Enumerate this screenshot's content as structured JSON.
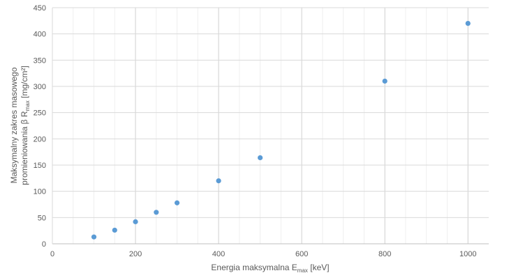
{
  "chart_data": {
    "type": "scatter",
    "title": "",
    "xlabel": {
      "main": "Energia maksymalna E",
      "sub": "max",
      "unit": " [keV]"
    },
    "ylabel": {
      "line1": "Maksymalny zakres masowego",
      "line2_main": "promieniowania β R",
      "line2_sub": "max",
      "line2_unit": "  [mg/cm²]"
    },
    "xlim": [
      0,
      1050
    ],
    "ylim": [
      0,
      450
    ],
    "x_ticks": [
      0,
      200,
      400,
      600,
      800,
      1000
    ],
    "y_ticks": [
      0,
      50,
      100,
      150,
      200,
      250,
      300,
      350,
      400,
      450
    ],
    "grid": true,
    "legend": "none",
    "marker_color": "#5B9BD5",
    "series": [
      {
        "x": [
          100,
          150,
          200,
          250,
          300,
          400,
          500,
          800,
          1000
        ],
        "y": [
          13,
          26,
          42,
          60,
          78,
          120,
          164,
          310,
          420
        ]
      }
    ]
  }
}
